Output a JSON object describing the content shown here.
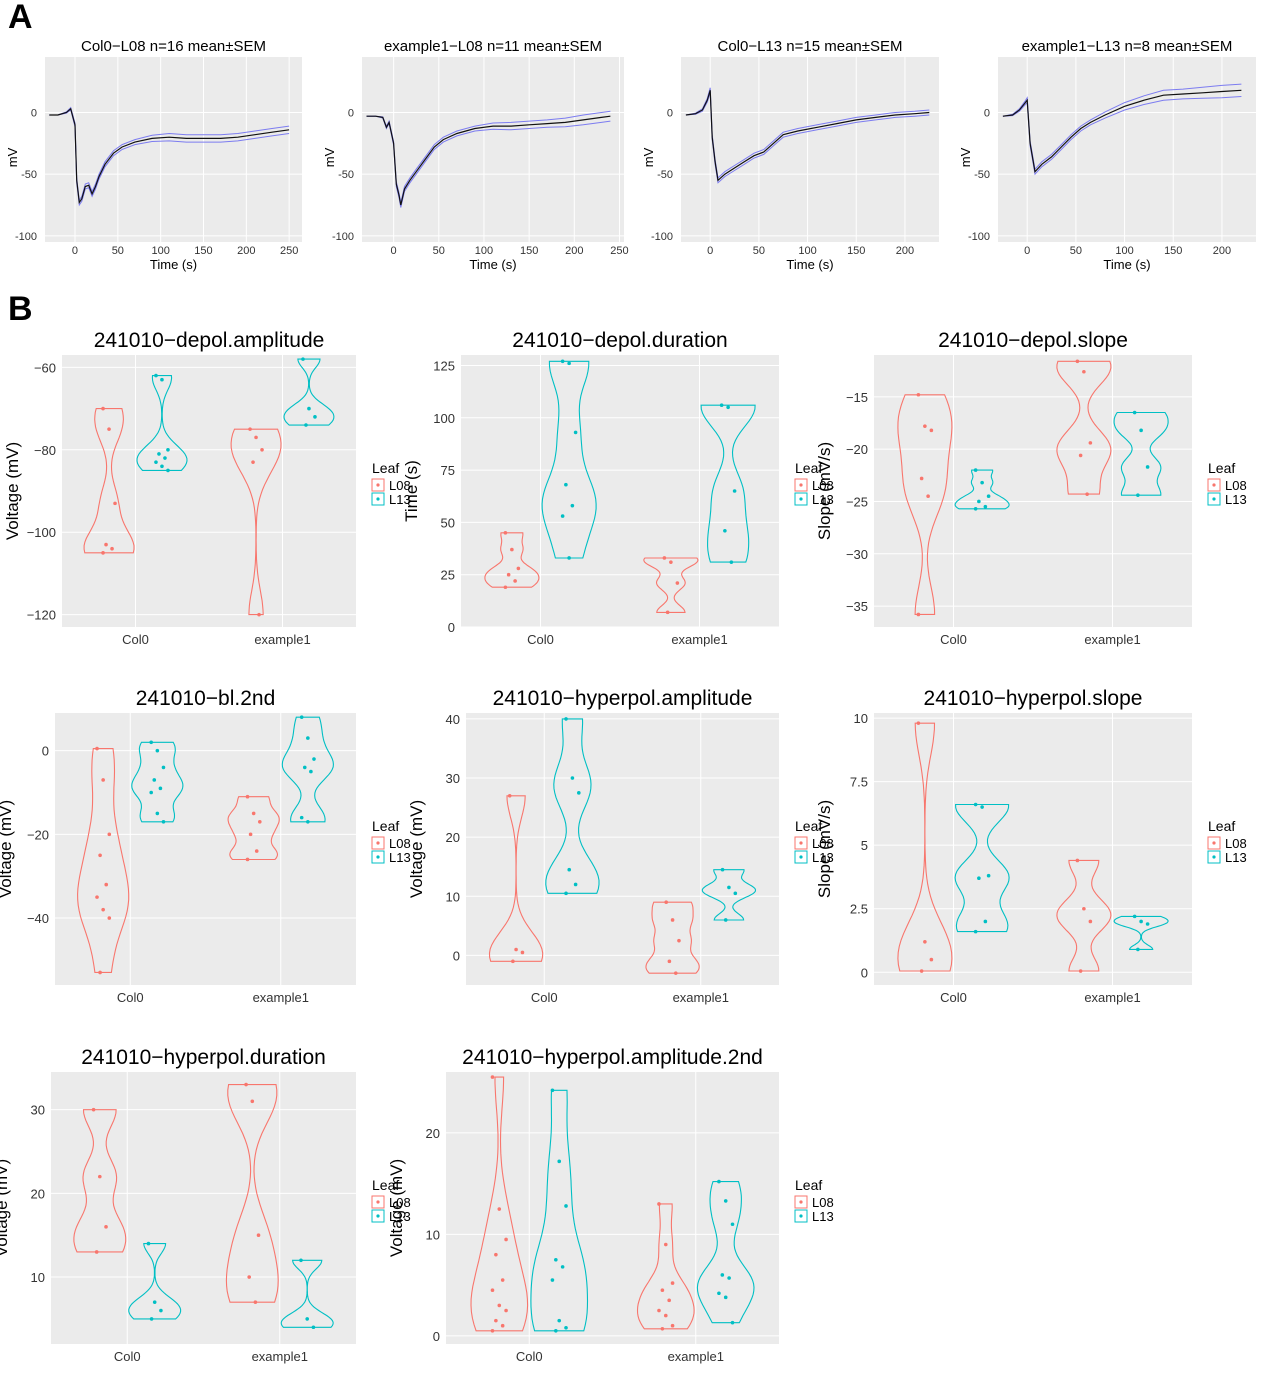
{
  "panel_labels": [
    "A",
    "B"
  ],
  "chart_data": [
    {
      "type": "line",
      "panel": "A",
      "title": "Col0−L08 n=16 mean±SEM",
      "xlabel": "Time (s)",
      "ylabel": "mV",
      "xlim": [
        -35,
        265
      ],
      "ylim": [
        -105,
        45
      ],
      "xticks": [
        0,
        50,
        100,
        150,
        200,
        250
      ],
      "yticks": [
        0,
        -50,
        -100
      ],
      "x": [
        -30,
        -20,
        -10,
        -5,
        0,
        2,
        5,
        8,
        12,
        16,
        20,
        24,
        28,
        35,
        45,
        55,
        70,
        90,
        110,
        130,
        150,
        170,
        190,
        210,
        230,
        250
      ],
      "mean": [
        -2,
        -2,
        0,
        3,
        -10,
        -55,
        -73,
        -70,
        -60,
        -59,
        -66,
        -60,
        -52,
        -42,
        -33,
        -28,
        -24,
        -21,
        -20,
        -21,
        -21,
        -21,
        -20,
        -18,
        -16,
        -14
      ],
      "sem": [
        0,
        0,
        0.5,
        1,
        1.5,
        2,
        2,
        2,
        2,
        2,
        2,
        2,
        2,
        2,
        2,
        2,
        2,
        2.5,
        3,
        3,
        3,
        3,
        3,
        3,
        3,
        3
      ]
    },
    {
      "type": "line",
      "panel": "A",
      "title": "example1−L08 n=11 mean±SEM",
      "xlabel": "Time (s)",
      "ylabel": "mV",
      "xlim": [
        -35,
        255
      ],
      "ylim": [
        -105,
        45
      ],
      "xticks": [
        0,
        50,
        100,
        150,
        200,
        250
      ],
      "yticks": [
        0,
        -50,
        -100
      ],
      "x": [
        -30,
        -20,
        -12,
        -8,
        -5,
        0,
        3,
        6,
        8,
        12,
        18,
        25,
        35,
        45,
        55,
        70,
        90,
        110,
        130,
        150,
        170,
        190,
        210,
        230,
        240
      ],
      "mean": [
        -3,
        -3,
        -4,
        -12,
        -8,
        -25,
        -58,
        -67,
        -75,
        -62,
        -55,
        -48,
        -38,
        -28,
        -22,
        -17,
        -13,
        -11,
        -11,
        -10,
        -9,
        -8,
        -6,
        -4,
        -3
      ],
      "sem": [
        0,
        0,
        0.5,
        1,
        1,
        1.5,
        2,
        2,
        2,
        2,
        2,
        2,
        2,
        2,
        2,
        2,
        2,
        2.5,
        3,
        3,
        3,
        3.5,
        4,
        4,
        4
      ]
    },
    {
      "type": "line",
      "panel": "A",
      "title": "Col0−L13 n=15 mean±SEM",
      "xlabel": "Time (s)",
      "ylabel": "mV",
      "xlim": [
        -30,
        235
      ],
      "ylim": [
        -105,
        45
      ],
      "xticks": [
        0,
        50,
        100,
        150,
        200
      ],
      "yticks": [
        0,
        -50,
        -100
      ],
      "x": [
        -25,
        -15,
        -8,
        -3,
        0,
        2,
        5,
        8,
        15,
        25,
        35,
        45,
        55,
        65,
        75,
        90,
        110,
        130,
        150,
        170,
        190,
        210,
        225
      ],
      "mean": [
        -2,
        -1,
        2,
        10,
        18,
        -20,
        -40,
        -55,
        -50,
        -45,
        -40,
        -35,
        -32,
        -25,
        -18,
        -15,
        -12,
        -9,
        -6,
        -4,
        -2,
        -1,
        0
      ],
      "sem": [
        0,
        0.5,
        1,
        1.5,
        2,
        2,
        2,
        2,
        2,
        2,
        2,
        2,
        2,
        2,
        2,
        2,
        2,
        2,
        2,
        2,
        2,
        2,
        2
      ]
    },
    {
      "type": "line",
      "panel": "A",
      "title": "example1−L13 n=8 mean±SEM",
      "xlabel": "Time (s)",
      "ylabel": "mV",
      "xlim": [
        -30,
        235
      ],
      "ylim": [
        -105,
        45
      ],
      "xticks": [
        0,
        50,
        100,
        150,
        200
      ],
      "yticks": [
        0,
        -50,
        -100
      ],
      "x": [
        -25,
        -15,
        -8,
        -2,
        0,
        3,
        8,
        15,
        25,
        35,
        45,
        55,
        65,
        80,
        100,
        120,
        140,
        160,
        180,
        200,
        220
      ],
      "mean": [
        -3,
        -2,
        2,
        8,
        10,
        -25,
        -48,
        -42,
        -36,
        -28,
        -20,
        -13,
        -8,
        -2,
        5,
        10,
        14,
        15,
        16,
        17,
        18
      ],
      "sem": [
        0,
        0.5,
        1,
        1.5,
        2,
        2,
        2,
        2,
        2,
        2,
        2,
        2,
        2,
        2.5,
        3,
        3.5,
        4,
        4,
        4.5,
        5,
        5
      ]
    },
    {
      "type": "violin",
      "panel": "B",
      "title": "241010−depol.amplitude",
      "xlabel": "",
      "ylabel": "Voltage (mV)",
      "categories": [
        "Col0",
        "example1"
      ],
      "ylim": [
        -123,
        -57
      ],
      "yticks": [
        -60,
        -80,
        -100,
        -120
      ],
      "legend_title": "Leaf",
      "series": [
        {
          "name": "L08",
          "color": "#F8766D",
          "groups": [
            [
              -70,
              -75,
              -93,
              -103,
              -104,
              -105
            ],
            [
              -75,
              -77,
              -80,
              -83,
              -120
            ]
          ]
        },
        {
          "name": "L13",
          "color": "#00BFC4",
          "groups": [
            [
              -62,
              -63,
              -80,
              -81,
              -82,
              -83,
              -84,
              -85
            ],
            [
              -58,
              -70,
              -72,
              -74
            ]
          ]
        }
      ]
    },
    {
      "type": "violin",
      "panel": "B",
      "title": "241010−depol.duration",
      "xlabel": "",
      "ylabel": "Time (s)",
      "categories": [
        "Col0",
        "example1"
      ],
      "ylim": [
        0,
        130
      ],
      "yticks": [
        0,
        25,
        50,
        75,
        100,
        125
      ],
      "legend_title": "Leaf",
      "series": [
        {
          "name": "L08",
          "color": "#F8766D",
          "groups": [
            [
              45,
              37,
              28,
              25,
              22,
              19
            ],
            [
              33,
              31,
              21,
              7
            ]
          ]
        },
        {
          "name": "L13",
          "color": "#00BFC4",
          "groups": [
            [
              127,
              126,
              93,
              68,
              58,
              53,
              33
            ],
            [
              106,
              105,
              65,
              46,
              31
            ]
          ]
        }
      ]
    },
    {
      "type": "violin",
      "panel": "B",
      "title": "241010−depol.slope",
      "xlabel": "",
      "ylabel": "Slope (mV/s)",
      "categories": [
        "Col0",
        "example1"
      ],
      "ylim": [
        -37,
        -11
      ],
      "yticks": [
        -15,
        -20,
        -25,
        -30,
        -35
      ],
      "legend_title": "Leaf",
      "series": [
        {
          "name": "L08",
          "color": "#F8766D",
          "groups": [
            [
              -14.8,
              -17.8,
              -18.2,
              -22.8,
              -24.5,
              -35.8
            ],
            [
              -11.6,
              -12.6,
              -19.4,
              -20.6,
              -24.3
            ]
          ]
        },
        {
          "name": "L13",
          "color": "#00BFC4",
          "groups": [
            [
              -22,
              -23.2,
              -24.5,
              -25,
              -25.5,
              -25.7
            ],
            [
              -16.5,
              -18.2,
              -21.7,
              -24.4
            ]
          ]
        }
      ]
    },
    {
      "type": "violin",
      "panel": "B",
      "title": "241010−bl.2nd",
      "xlabel": "",
      "ylabel": "Voltage (mV)",
      "categories": [
        "Col0",
        "example1"
      ],
      "ylim": [
        -56,
        9
      ],
      "yticks": [
        0,
        -20,
        -40
      ],
      "legend_title": "Leaf",
      "series": [
        {
          "name": "L08",
          "color": "#F8766D",
          "groups": [
            [
              0.5,
              -7,
              -20,
              -25,
              -32,
              -35,
              -38,
              -40,
              -53
            ],
            [
              -11,
              -15,
              -17,
              -20,
              -24,
              -26
            ]
          ]
        },
        {
          "name": "L13",
          "color": "#00BFC4",
          "groups": [
            [
              2,
              0,
              -4,
              -7,
              -9,
              -10,
              -15,
              -17
            ],
            [
              8,
              3,
              -2,
              -4,
              -5,
              -16,
              -17
            ]
          ]
        }
      ]
    },
    {
      "type": "violin",
      "panel": "B",
      "title": "241010−hyperpol.amplitude",
      "xlabel": "",
      "ylabel": "Voltage (mV)",
      "categories": [
        "Col0",
        "example1"
      ],
      "ylim": [
        -5,
        41
      ],
      "yticks": [
        0,
        10,
        20,
        30,
        40
      ],
      "legend_title": "Leaf",
      "series": [
        {
          "name": "L08",
          "color": "#F8766D",
          "groups": [
            [
              27,
              1,
              0.5,
              -1
            ],
            [
              9,
              6,
              2.5,
              -1,
              -3
            ]
          ]
        },
        {
          "name": "L13",
          "color": "#00BFC4",
          "groups": [
            [
              40,
              30,
              27.5,
              14.5,
              12,
              10.5
            ],
            [
              14.5,
              11.5,
              10.5,
              6
            ]
          ]
        }
      ]
    },
    {
      "type": "violin",
      "panel": "B",
      "title": "241010−hyperpol.slope",
      "xlabel": "",
      "ylabel": "Slope (mV/s)",
      "categories": [
        "Col0",
        "example1"
      ],
      "ylim": [
        -0.5,
        10.2
      ],
      "yticks": [
        0,
        2.5,
        5,
        7.5,
        10
      ],
      "legend_title": "Leaf",
      "series": [
        {
          "name": "L08",
          "color": "#F8766D",
          "groups": [
            [
              9.8,
              1.2,
              0.5,
              0.05
            ],
            [
              4.4,
              2.5,
              2,
              0.05
            ]
          ]
        },
        {
          "name": "L13",
          "color": "#00BFC4",
          "groups": [
            [
              6.6,
              6.5,
              3.8,
              3.7,
              2,
              1.6
            ],
            [
              2.2,
              2,
              1.9,
              0.9
            ]
          ]
        }
      ]
    },
    {
      "type": "violin",
      "panel": "B",
      "title": "241010−hyperpol.duration",
      "xlabel": "",
      "ylabel": "Voltage (mV)",
      "categories": [
        "Col0",
        "example1"
      ],
      "ylim": [
        2,
        34.5
      ],
      "yticks": [
        10,
        20,
        30
      ],
      "legend_title": "Leaf",
      "series": [
        {
          "name": "L08",
          "color": "#F8766D",
          "groups": [
            [
              30,
              22,
              16,
              13
            ],
            [
              33,
              31,
              15,
              10,
              7
            ]
          ]
        },
        {
          "name": "L13",
          "color": "#00BFC4",
          "groups": [
            [
              14,
              7,
              6,
              5
            ],
            [
              12,
              5,
              4
            ]
          ]
        }
      ]
    },
    {
      "type": "violin",
      "panel": "B",
      "title": "241010−hyperpol.amplitude.2nd",
      "xlabel": "",
      "ylabel": "Voltage (mV)",
      "categories": [
        "Col0",
        "example1"
      ],
      "ylim": [
        -0.8,
        26
      ],
      "yticks": [
        0,
        10,
        20
      ],
      "legend_title": "Leaf",
      "series": [
        {
          "name": "L08",
          "color": "#F8766D",
          "groups": [
            [
              25.5,
              12.5,
              9.5,
              8,
              5.5,
              4.5,
              3,
              2.5,
              1.5,
              1,
              0.5
            ],
            [
              13,
              9,
              5.2,
              4.5,
              3.5,
              2.5,
              2,
              1,
              0.7
            ]
          ]
        },
        {
          "name": "L13",
          "color": "#00BFC4",
          "groups": [
            [
              24.2,
              17.2,
              12.8,
              7.5,
              6.8,
              5.5,
              1.5,
              0.8,
              0.5
            ],
            [
              15.2,
              13.3,
              11,
              6,
              5.7,
              4.2,
              3.8,
              1.3
            ]
          ]
        }
      ]
    }
  ]
}
